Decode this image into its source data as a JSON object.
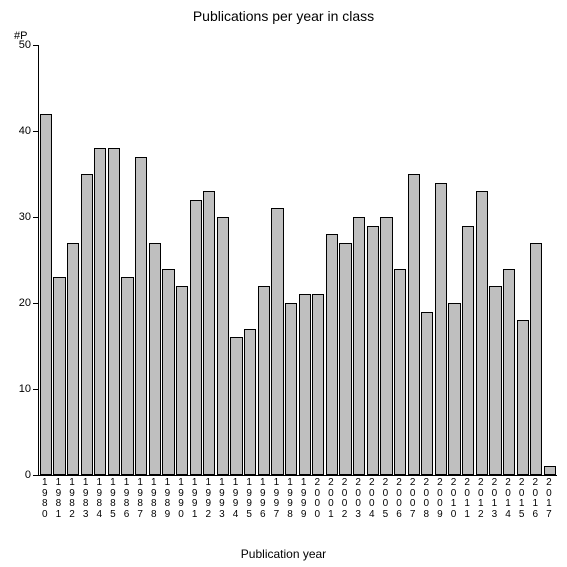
{
  "chart": {
    "type": "bar",
    "title": "Publications per year in class",
    "title_fontsize": 14,
    "y_axis_label": "#P",
    "x_axis_title": "Publication year",
    "label_fontsize": 12,
    "background_color": "#ffffff",
    "bar_fill_color": "#bfbfbf",
    "bar_border_color": "#000000",
    "axis_color": "#000000",
    "text_color": "#000000",
    "ylim": [
      0,
      50
    ],
    "ytick_step": 10,
    "yticks": [
      0,
      10,
      20,
      30,
      40,
      50
    ],
    "bar_width": 0.9,
    "categories": [
      "1980",
      "1981",
      "1982",
      "1983",
      "1984",
      "1985",
      "1986",
      "1987",
      "1988",
      "1989",
      "1990",
      "1991",
      "1992",
      "1993",
      "1994",
      "1995",
      "1996",
      "1997",
      "1998",
      "1999",
      "2000",
      "2001",
      "2002",
      "2003",
      "2004",
      "2005",
      "2006",
      "2007",
      "2008",
      "2009",
      "2010",
      "2011",
      "2012",
      "2013",
      "2014",
      "2015",
      "2016",
      "2017"
    ],
    "values": [
      42,
      23,
      27,
      35,
      38,
      38,
      23,
      37,
      27,
      24,
      22,
      32,
      33,
      30,
      16,
      17,
      22,
      31,
      20,
      21,
      21,
      28,
      27,
      30,
      29,
      30,
      24,
      35,
      19,
      34,
      20,
      29,
      33,
      22,
      24,
      18,
      27,
      1
    ]
  }
}
